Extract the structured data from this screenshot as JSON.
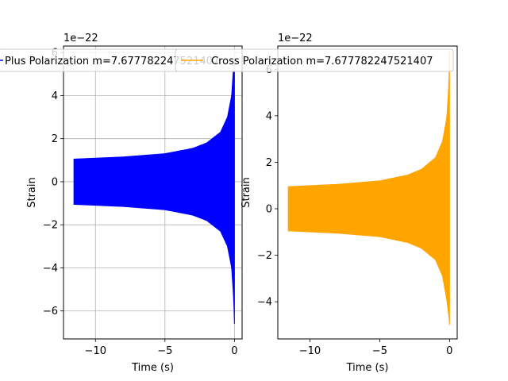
{
  "chart_data": [
    {
      "type": "line",
      "xlabel": "Time (s)",
      "ylabel": "Strain",
      "offset_text": "1e−22",
      "grid": true,
      "xlim": [
        -12.3,
        0.55
      ],
      "ylim": [
        -7.3,
        6.3
      ],
      "xticks": [
        -10,
        -5,
        0
      ],
      "xtick_labels": [
        "−10",
        "−5",
        "0"
      ],
      "yticks": [
        -6,
        -4,
        -2,
        0,
        2,
        4,
        6
      ],
      "ytick_labels": [
        "−6",
        "−4",
        "−2",
        "0",
        "2",
        "4",
        "6"
      ],
      "legend": "top-left",
      "series": [
        {
          "name": "Plus Polarization m=7.677782247521407",
          "color": "#0000ff",
          "envelope_upper": [
            [
              -11.55,
              1.05
            ],
            [
              -8,
              1.15
            ],
            [
              -5,
              1.3
            ],
            [
              -3,
              1.55
            ],
            [
              -2,
              1.8
            ],
            [
              -1,
              2.3
            ],
            [
              -0.5,
              3.0
            ],
            [
              -0.2,
              4.0
            ],
            [
              -0.05,
              5.5
            ],
            [
              0,
              6.1
            ]
          ],
          "envelope_lower": [
            [
              -11.55,
              -1.05
            ],
            [
              -8,
              -1.15
            ],
            [
              -5,
              -1.3
            ],
            [
              -3,
              -1.55
            ],
            [
              -2,
              -1.8
            ],
            [
              -1,
              -2.3
            ],
            [
              -0.5,
              -3.0
            ],
            [
              -0.2,
              -4.0
            ],
            [
              -0.05,
              -5.5
            ],
            [
              0,
              -6.6
            ]
          ]
        }
      ]
    },
    {
      "type": "line",
      "xlabel": "Time (s)",
      "ylabel": "Strain",
      "offset_text": "1e−22",
      "grid": false,
      "xlim": [
        -12.3,
        0.55
      ],
      "ylim": [
        -5.6,
        7.0
      ],
      "xticks": [
        -10,
        -5,
        0
      ],
      "xtick_labels": [
        "−10",
        "−5",
        "0"
      ],
      "yticks": [
        -4,
        -2,
        0,
        2,
        4,
        6
      ],
      "ytick_labels": [
        "−4",
        "−2",
        "0",
        "2",
        "4",
        "6"
      ],
      "legend": "top-left",
      "series": [
        {
          "name": "Cross Polarization m=7.677782247521407",
          "color": "#ffa500",
          "envelope_upper": [
            [
              -11.55,
              0.95
            ],
            [
              -8,
              1.05
            ],
            [
              -5,
              1.2
            ],
            [
              -3,
              1.45
            ],
            [
              -2,
              1.7
            ],
            [
              -1,
              2.2
            ],
            [
              -0.5,
              2.9
            ],
            [
              -0.2,
              3.9
            ],
            [
              -0.05,
              5.3
            ],
            [
              0,
              6.8
            ]
          ],
          "envelope_lower": [
            [
              -11.55,
              -0.95
            ],
            [
              -8,
              -1.05
            ],
            [
              -5,
              -1.2
            ],
            [
              -3,
              -1.45
            ],
            [
              -2,
              -1.7
            ],
            [
              -1,
              -2.2
            ],
            [
              -0.5,
              -2.9
            ],
            [
              -0.2,
              -3.9
            ],
            [
              -0.05,
              -4.6
            ],
            [
              0,
              -5.0
            ]
          ]
        }
      ]
    }
  ]
}
